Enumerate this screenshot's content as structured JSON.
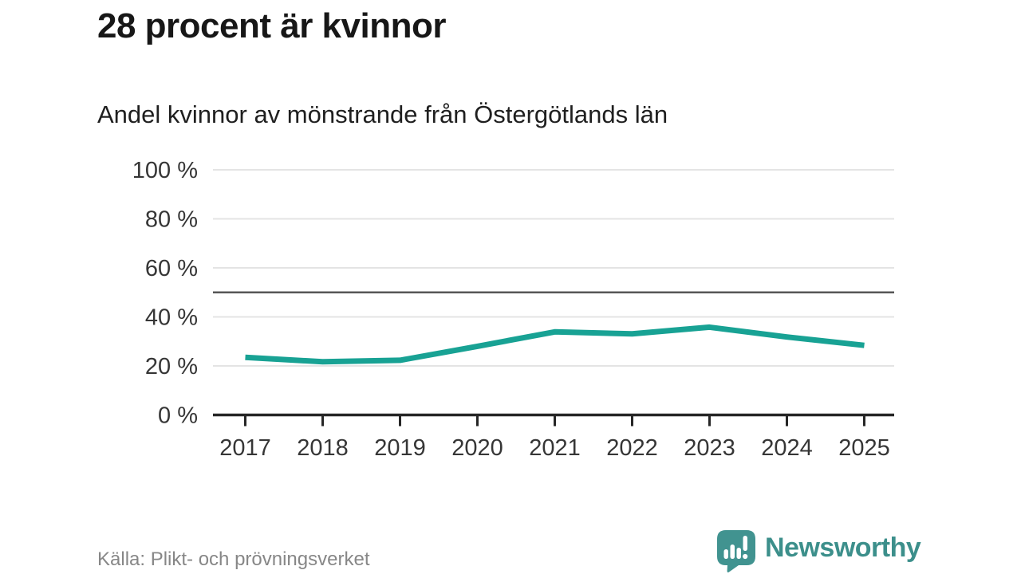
{
  "header": {
    "title": "28 procent är kvinnor",
    "subtitle": "Andel kvinnor av mönstrande från Östergötlands län"
  },
  "chart_data": {
    "type": "line",
    "x": [
      2017,
      2018,
      2019,
      2020,
      2021,
      2022,
      2023,
      2024,
      2025
    ],
    "series": [
      {
        "name": "Andel kvinnor av mönstrande",
        "values": [
          23.5,
          21.7,
          22.3,
          28.0,
          33.9,
          33.1,
          35.8,
          31.8,
          28.4
        ]
      }
    ],
    "ylim": [
      0,
      100
    ],
    "y_ticks": [
      0,
      20,
      40,
      60,
      80,
      100
    ],
    "y_tick_suffix": " %",
    "reference_line": 50,
    "grid": true,
    "legend_position": "none",
    "line_color": "#18a294"
  },
  "footer": {
    "source": "Källa: Plikt- och prövningsverket",
    "brand": "Newsworthy"
  },
  "colors": {
    "accent_teal": "#18a294",
    "brand_teal": "#3c8f8b",
    "grid": "#e4e4e4",
    "reference": "#565656",
    "axis": "#262626",
    "tick_text": "#363636",
    "muted_text": "#878787"
  }
}
